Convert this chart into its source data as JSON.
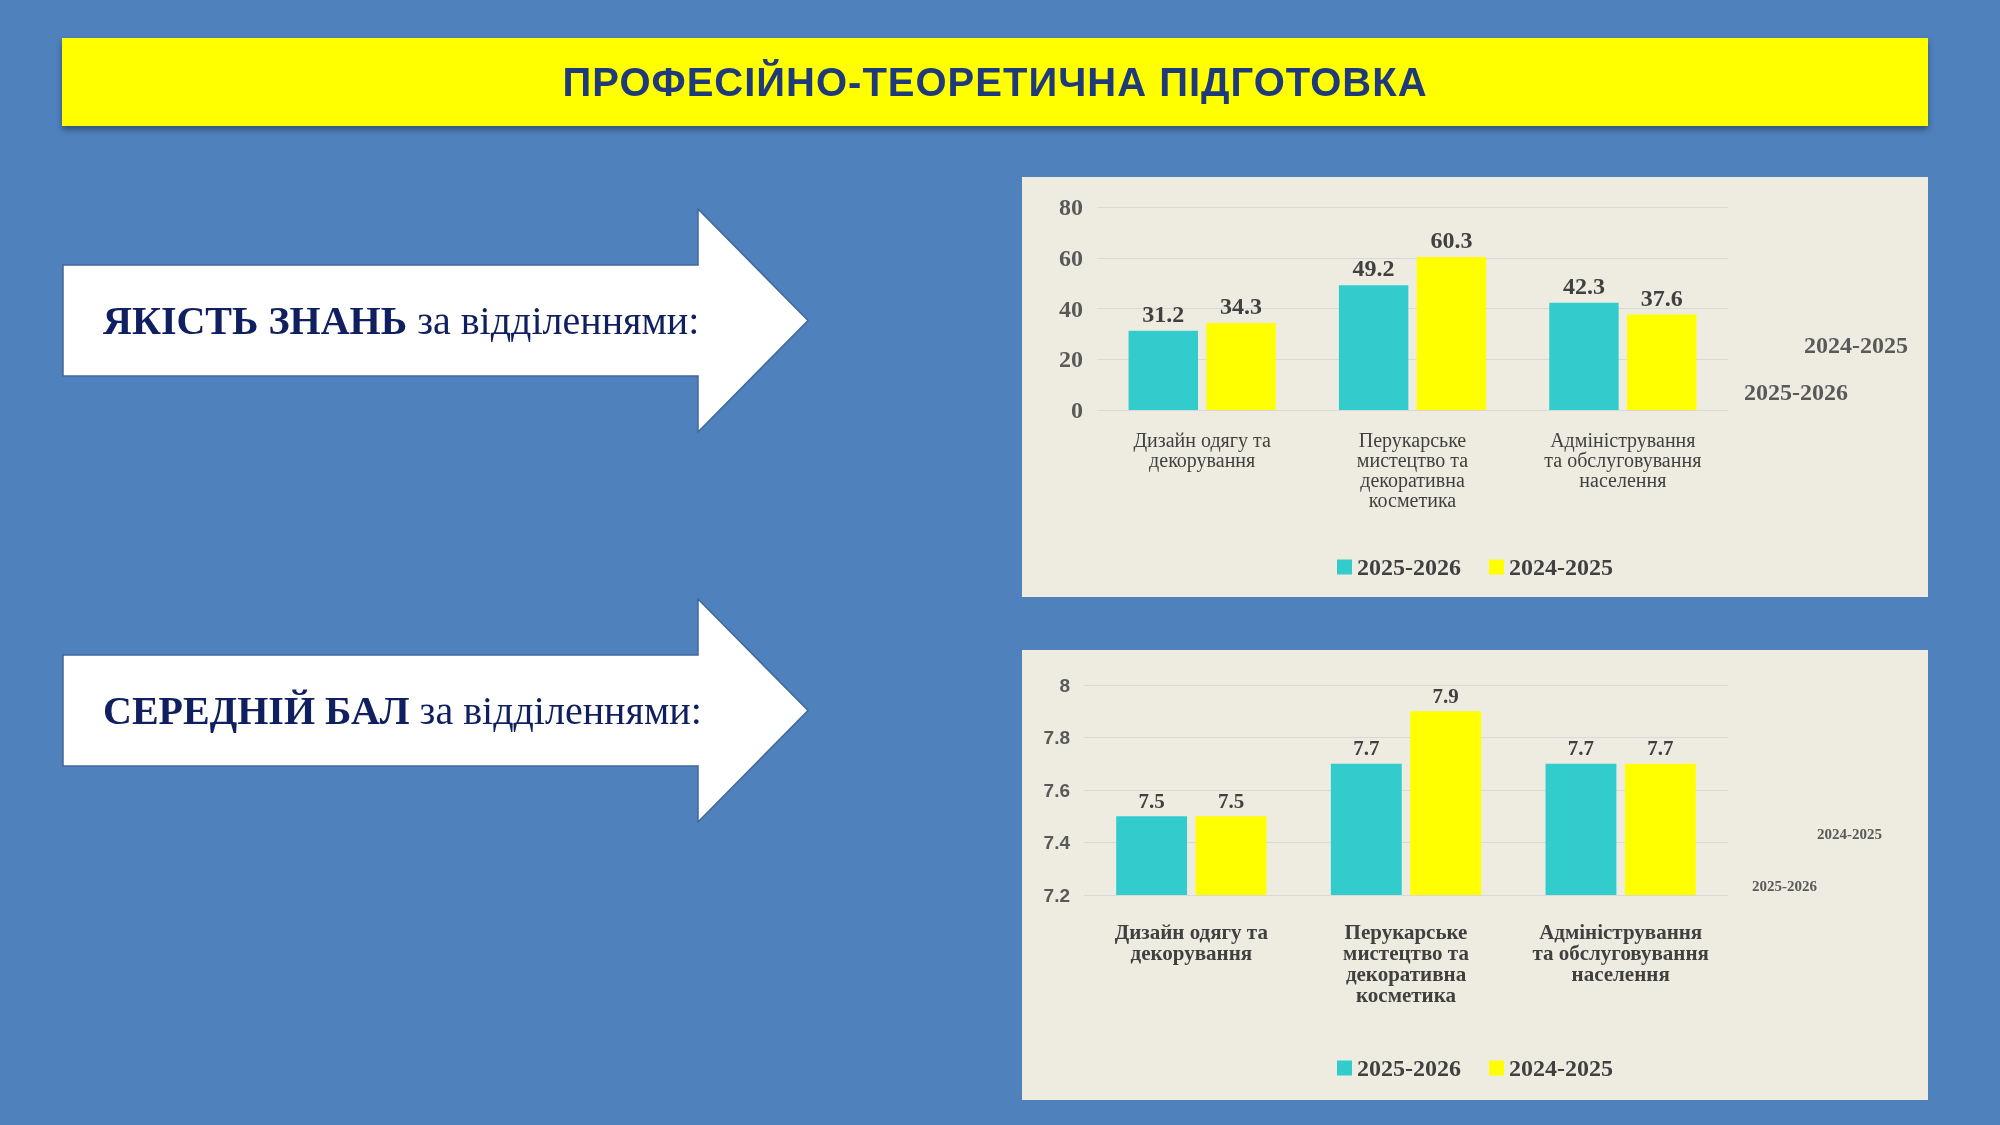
{
  "chart_data": [
    {
      "type": "other",
      "title": "ПРОФЕСІЙНО-ТЕОРЕТИЧНА ПІДГОТОВКА"
    },
    {
      "type": "other",
      "title": "ЯКІСТЬ ЗНАНЬ",
      "subtitle": "за відділеннями:"
    },
    {
      "type": "bar",
      "categories": [
        "Дизайн одягу та декорування",
        "Перукарське мистецтво та декоративна косметика",
        "Адміністрування та обслуговування населення"
      ],
      "series": [
        {
          "name": "2025-2026",
          "color": "#33cccc",
          "values": [
            31.2,
            49.2,
            42.3
          ]
        },
        {
          "name": "2024-2025",
          "color": "#ffff00",
          "values": [
            34.3,
            60.3,
            37.6
          ]
        }
      ],
      "ylim": [
        0,
        80
      ],
      "yticks": [
        0,
        20,
        40,
        60,
        80
      ],
      "grid": "y",
      "legend": "bottom",
      "data_labels": true
    },
    {
      "type": "other",
      "title": "СЕРЕДНІЙ БАЛ",
      "subtitle": "за відділеннями:"
    },
    {
      "type": "bar",
      "categories": [
        "Дизайн одягу та декорування",
        "Перукарське мистецтво та декоративна косметика",
        "Адміністрування та обслуговування населення"
      ],
      "series": [
        {
          "name": "2025-2026",
          "color": "#33cccc",
          "values": [
            7.5,
            7.7,
            7.7
          ]
        },
        {
          "name": "2024-2025",
          "color": "#ffff00",
          "values": [
            7.5,
            7.9,
            7.7
          ]
        }
      ],
      "ylim": [
        7.2,
        8
      ],
      "yticks": [
        7.2,
        7.4,
        7.6,
        7.8,
        8
      ],
      "grid": "y",
      "legend": "bottom",
      "data_labels": true
    }
  ]
}
